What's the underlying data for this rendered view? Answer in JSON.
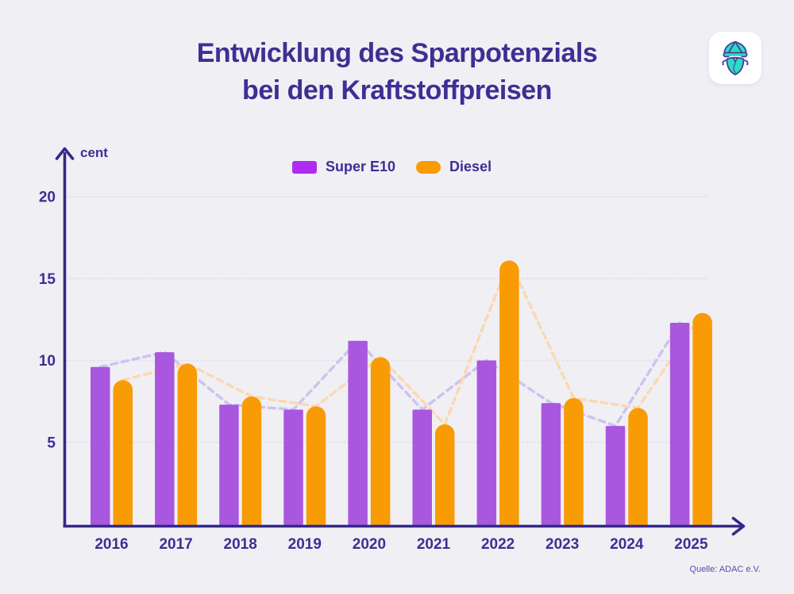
{
  "page": {
    "background": "#f0eff4"
  },
  "header": {
    "title_line1": "Entwicklung des Sparpotenzials",
    "title_line2": "bei den Kraftstoffpreisen",
    "logo_name": "finanzguru-mascot-icon"
  },
  "legend": {
    "items": [
      {
        "label": "Super E10",
        "color": "#ae2cf2",
        "shape": "square"
      },
      {
        "label": "Diesel",
        "color": "#f99b05",
        "shape": "pill"
      }
    ]
  },
  "colors": {
    "background": "#f0eff4",
    "title_text": "#3d2f93",
    "axis": "#34288a",
    "tick_text": "#3d2f93",
    "gridline": "#e3e1ee",
    "super_e10_bar": "#a957de",
    "super_e10_legend": "#ae2cf2",
    "diesel_bar": "#f99b05",
    "trend_super_e10": "#cec2ef",
    "trend_diesel": "#fad9b2",
    "source_text": "#5b4bab",
    "logo_teal": "#2bdcc7",
    "logo_outline": "#4b3a9b"
  },
  "source": "Quelle: ADAC e.V.",
  "chart_data": {
    "type": "bar",
    "title": "Entwicklung des Sparpotenzials bei den Kraftstoffpreisen",
    "unit_label": "cent",
    "xlabel": "",
    "ylabel": "cent",
    "categories": [
      "2016",
      "2017",
      "2018",
      "2019",
      "2020",
      "2021",
      "2022",
      "2023",
      "2024",
      "2025"
    ],
    "series": [
      {
        "name": "Super E10",
        "color": "#a957de",
        "bar_top": "flat",
        "trend_color": "#cec2ef",
        "values": [
          9.6,
          10.5,
          7.3,
          7.0,
          11.2,
          7.0,
          10.0,
          7.4,
          6.0,
          12.3
        ]
      },
      {
        "name": "Diesel",
        "color": "#f99b05",
        "bar_top": "rounded",
        "trend_color": "#fad9b2",
        "values": [
          8.8,
          9.8,
          7.8,
          7.2,
          10.2,
          6.1,
          16.1,
          7.7,
          7.1,
          12.9
        ]
      }
    ],
    "yticks": [
      5,
      10,
      15,
      20
    ],
    "ylim": [
      0,
      22
    ],
    "grid": true,
    "grid_style": "dotted",
    "trend_lines_dashed": true,
    "legend_position": "top-center",
    "source": "Quelle: ADAC e.V."
  }
}
